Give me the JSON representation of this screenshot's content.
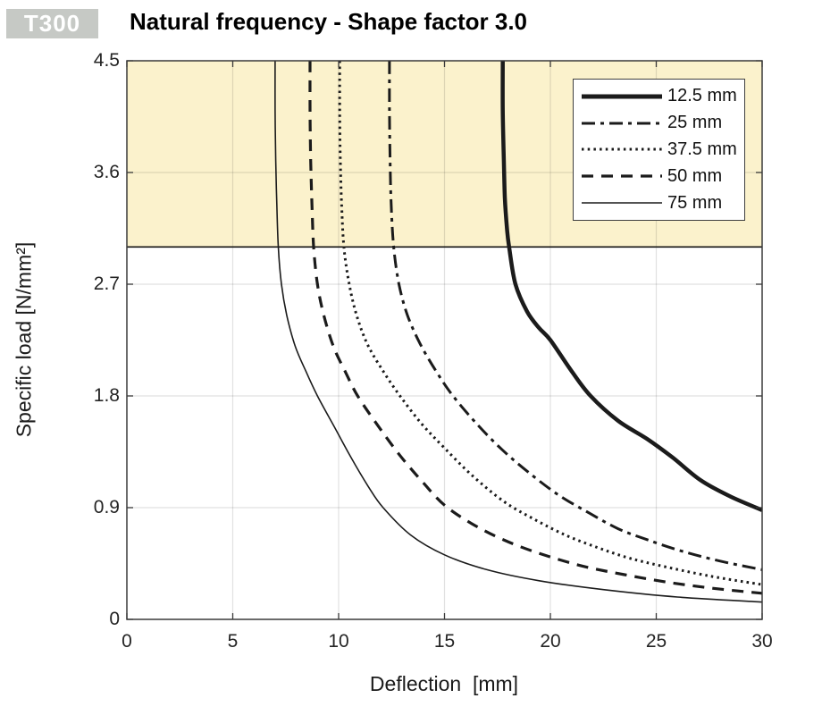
{
  "header": {
    "badge": "T300",
    "title": "Natural frequency - Shape factor 3.0"
  },
  "colors": {
    "curve": "#1b1b1b",
    "band_fill": "#fbf2cc",
    "band_edge": "#141414",
    "grid": "rgba(26,26,26,0.13)",
    "axis_box": "#3a3a3a",
    "badge_bg": "#c6c9c5",
    "badge_text": "#ffffff",
    "legend_border": "#3f3f3f"
  },
  "chart_data": {
    "type": "line",
    "title": "Natural frequency - Shape factor 3.0",
    "xlabel": "Deflection  [mm]",
    "ylabel": "Specific load [N/mm²]",
    "xlim": [
      0,
      30
    ],
    "ylim": [
      0,
      4.5
    ],
    "xticks": [
      0,
      5,
      10,
      15,
      20,
      25,
      30
    ],
    "yticks": [
      0,
      0.9,
      1.8,
      2.7,
      3.6,
      4.5
    ],
    "grid": true,
    "legend_position": "top-right",
    "shaded_band": {
      "from": 3.0,
      "to": 4.5,
      "color": "#fbf2cc"
    },
    "series": [
      {
        "name": "12.5 mm",
        "thickness_mm": 12.5,
        "style": "thick-solid",
        "points": [
          [
            17.75,
            4.5
          ],
          [
            17.75,
            4.1
          ],
          [
            17.8,
            3.7
          ],
          [
            17.85,
            3.4
          ],
          [
            17.95,
            3.15
          ],
          [
            18.05,
            3.0
          ],
          [
            18.35,
            2.7
          ],
          [
            18.9,
            2.48
          ],
          [
            19.45,
            2.35
          ],
          [
            20.0,
            2.25
          ],
          [
            21.0,
            2.0
          ],
          [
            21.9,
            1.8
          ],
          [
            23.2,
            1.6
          ],
          [
            24.6,
            1.45
          ],
          [
            25.8,
            1.3
          ],
          [
            27.1,
            1.12
          ],
          [
            28.5,
            0.99
          ],
          [
            30,
            0.88
          ]
        ]
      },
      {
        "name": "25 mm",
        "thickness_mm": 25,
        "style": "dash-dot",
        "points": [
          [
            12.4,
            4.5
          ],
          [
            12.4,
            4.1
          ],
          [
            12.43,
            3.7
          ],
          [
            12.48,
            3.35
          ],
          [
            12.6,
            3.0
          ],
          [
            12.85,
            2.7
          ],
          [
            13.25,
            2.45
          ],
          [
            13.85,
            2.22
          ],
          [
            14.6,
            2.0
          ],
          [
            15.4,
            1.8
          ],
          [
            16.5,
            1.58
          ],
          [
            17.7,
            1.37
          ],
          [
            19.0,
            1.18
          ],
          [
            20.4,
            1.0
          ],
          [
            21.8,
            0.86
          ],
          [
            23.2,
            0.73
          ],
          [
            24.6,
            0.64
          ],
          [
            26.2,
            0.55
          ],
          [
            28.0,
            0.47
          ],
          [
            30,
            0.4
          ]
        ]
      },
      {
        "name": "37.5 mm",
        "thickness_mm": 37.5,
        "style": "dotted",
        "points": [
          [
            10.05,
            4.5
          ],
          [
            10.05,
            4.1
          ],
          [
            10.08,
            3.7
          ],
          [
            10.14,
            3.35
          ],
          [
            10.25,
            3.0
          ],
          [
            10.5,
            2.7
          ],
          [
            10.85,
            2.45
          ],
          [
            11.35,
            2.22
          ],
          [
            12.1,
            2.0
          ],
          [
            12.9,
            1.8
          ],
          [
            13.9,
            1.58
          ],
          [
            15.0,
            1.38
          ],
          [
            16.3,
            1.16
          ],
          [
            17.8,
            0.95
          ],
          [
            19.2,
            0.81
          ],
          [
            20.7,
            0.68
          ],
          [
            22.2,
            0.58
          ],
          [
            23.6,
            0.5
          ],
          [
            25.0,
            0.44
          ],
          [
            27.5,
            0.35
          ],
          [
            30,
            0.28
          ]
        ]
      },
      {
        "name": "50 mm",
        "thickness_mm": 50,
        "style": "dashed",
        "points": [
          [
            8.65,
            4.5
          ],
          [
            8.65,
            4.1
          ],
          [
            8.68,
            3.7
          ],
          [
            8.74,
            3.35
          ],
          [
            8.82,
            3.0
          ],
          [
            9.0,
            2.7
          ],
          [
            9.3,
            2.45
          ],
          [
            9.75,
            2.2
          ],
          [
            10.3,
            2.0
          ],
          [
            10.9,
            1.8
          ],
          [
            11.9,
            1.55
          ],
          [
            12.9,
            1.32
          ],
          [
            14.0,
            1.1
          ],
          [
            15.0,
            0.92
          ],
          [
            16.3,
            0.77
          ],
          [
            17.8,
            0.64
          ],
          [
            19.5,
            0.53
          ],
          [
            21.5,
            0.43
          ],
          [
            23.5,
            0.36
          ],
          [
            25.5,
            0.3
          ],
          [
            27.7,
            0.25
          ],
          [
            30,
            0.21
          ]
        ]
      },
      {
        "name": "75 mm",
        "thickness_mm": 75,
        "style": "thin-solid",
        "points": [
          [
            7.0,
            4.5
          ],
          [
            7.0,
            4.1
          ],
          [
            7.03,
            3.7
          ],
          [
            7.08,
            3.35
          ],
          [
            7.15,
            3.0
          ],
          [
            7.3,
            2.7
          ],
          [
            7.55,
            2.45
          ],
          [
            7.95,
            2.2
          ],
          [
            8.45,
            2.0
          ],
          [
            9.0,
            1.8
          ],
          [
            9.8,
            1.55
          ],
          [
            10.6,
            1.3
          ],
          [
            11.4,
            1.07
          ],
          [
            12.1,
            0.9
          ],
          [
            13.4,
            0.68
          ],
          [
            15.0,
            0.52
          ],
          [
            17.0,
            0.4
          ],
          [
            19.5,
            0.31
          ],
          [
            22.5,
            0.24
          ],
          [
            26.0,
            0.18
          ],
          [
            30,
            0.14
          ]
        ]
      }
    ]
  }
}
